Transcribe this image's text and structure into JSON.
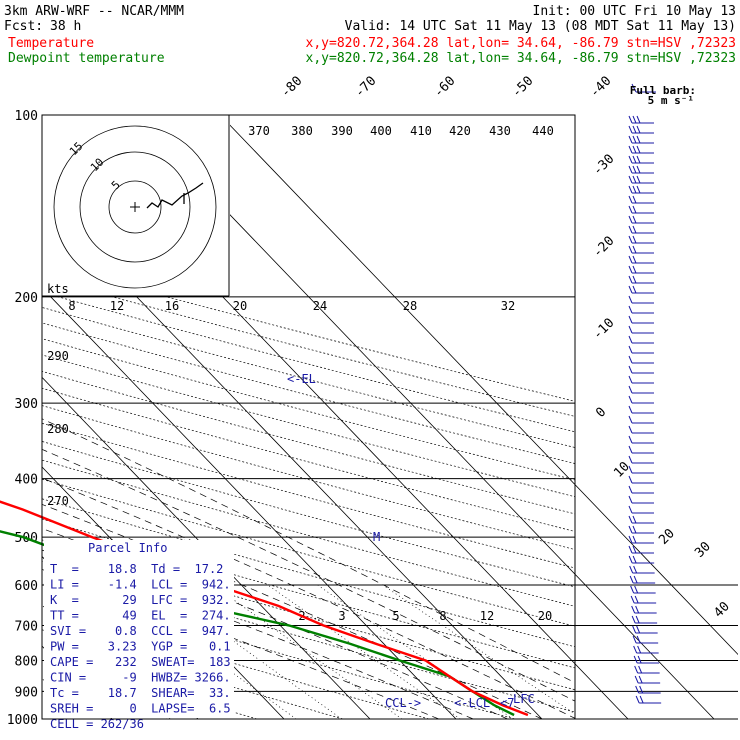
{
  "header": {
    "model": "3km ARW-WRF -- NCAR/MMM",
    "init": "Init: 00 UTC Fri 10 May 13",
    "fcst_label": "Fcst:",
    "fcst_value": "38 h",
    "valid": "Valid: 14 UTC Sat 11 May 13 (08 MDT Sat 11 May 13)",
    "temp_label": "Temperature",
    "temp_loc": "x,y=820.72,364.28   lat,lon= 34.64, -86.79   stn=HSV ,72323",
    "dew_label": "Dewpoint temperature",
    "dew_loc": "x,y=820.72,364.28   lat,lon= 34.64, -86.79   stn=HSV ,72323",
    "barb_title": "Full barb:",
    "barb_sub": "5 m s⁻¹"
  },
  "colors": {
    "temperature": "#ff0000",
    "dewpoint": "#008000",
    "axis": "#000000",
    "annotation": "#1a1aa6",
    "barb": "#1a1aa6"
  },
  "chart_data": {
    "type": "line",
    "title": "",
    "xlabel": "",
    "ylabel": "",
    "pressure_ticks": [
      100,
      200,
      300,
      400,
      500,
      600,
      700,
      800,
      900,
      1000
    ],
    "isotherm_ticks": [
      "-80",
      "-70",
      "-60",
      "-50",
      "-40",
      "-30",
      "-20",
      "-10",
      "0",
      "10",
      "20",
      "30",
      "40"
    ],
    "theta_e_ticks": [
      "370",
      "380",
      "390",
      "400",
      "410",
      "420",
      "430",
      "440"
    ],
    "theta_ticks": [
      "290",
      "280",
      "270"
    ],
    "mixing_ratio_ticks": [
      "2",
      "3",
      "5",
      "8",
      "12",
      "20"
    ],
    "hodograph_ticks": [
      "8",
      "12",
      "16",
      "20",
      "24",
      "28",
      "32"
    ],
    "hodograph_units": "kts",
    "hodo_ring_labels": [
      "15",
      "10",
      "5"
    ],
    "series": [
      {
        "name": "Temperature",
        "points": [
          [
            100,
            -62
          ],
          [
            130,
            -59
          ],
          [
            150,
            -59
          ],
          [
            175,
            -58
          ],
          [
            200,
            -57
          ],
          [
            250,
            -50
          ],
          [
            300,
            -42
          ],
          [
            350,
            -33
          ],
          [
            400,
            -24
          ],
          [
            450,
            -17
          ],
          [
            500,
            -12
          ],
          [
            550,
            -7
          ],
          [
            600,
            -3
          ],
          [
            650,
            2
          ],
          [
            700,
            5
          ],
          [
            750,
            9
          ],
          [
            800,
            13
          ],
          [
            850,
            14
          ],
          [
            900,
            15
          ],
          [
            950,
            17
          ],
          [
            985,
            18.8
          ]
        ]
      },
      {
        "name": "Dewpoint temperature",
        "points": [
          [
            100,
            -73
          ],
          [
            120,
            -74
          ],
          [
            150,
            -79
          ],
          [
            175,
            -81
          ],
          [
            200,
            -80
          ],
          [
            220,
            -78
          ],
          [
            250,
            -80
          ],
          [
            275,
            -74
          ],
          [
            300,
            -58
          ],
          [
            350,
            -42
          ],
          [
            400,
            -35
          ],
          [
            450,
            -30
          ],
          [
            500,
            -20
          ],
          [
            550,
            -15
          ],
          [
            600,
            -13
          ],
          [
            650,
            -7
          ],
          [
            700,
            1
          ],
          [
            750,
            6
          ],
          [
            800,
            10
          ],
          [
            850,
            14
          ],
          [
            900,
            15
          ],
          [
            950,
            16
          ],
          [
            985,
            17.2
          ]
        ]
      }
    ],
    "annotations": [
      "<-EL",
      "M",
      "CCL->",
      "<-LCL",
      "<7",
      "LFC"
    ]
  },
  "parcel_info": {
    "title": "Parcel Info",
    "rows": [
      "T  =    18.8  Td =  17.2",
      "LI =    -1.4  LCL =  942.",
      "K  =      29  LFC =  932.",
      "TT =      49  EL  =  274.",
      "SVI =    0.8  CCL =  947.",
      "PW =    3.23  YGP =   0.1",
      "CAPE =   232  SWEAT=  183",
      "CIN =     -9  HWBZ= 3266.",
      "Tc =    18.7  SHEAR=  33.",
      "SREH =     0  LAPSE=  6.5",
      "CELL = 262/36"
    ]
  }
}
